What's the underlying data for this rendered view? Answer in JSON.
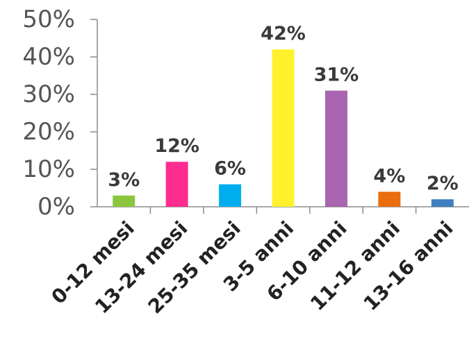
{
  "chart_data": {
    "type": "bar",
    "title": "",
    "xlabel": "",
    "ylabel": "",
    "ylim": [
      0,
      50
    ],
    "y_ticks": [
      "0%",
      "10%",
      "20%",
      "30%",
      "40%",
      "50%"
    ],
    "grid": false,
    "categories": [
      "0-12 mesi",
      "13-24 mesi",
      "25-35 mesi",
      "3-5 anni",
      "6-10 anni",
      "11-12 anni",
      "13-16 anni"
    ],
    "values": [
      3,
      12,
      6,
      42,
      31,
      4,
      2
    ],
    "value_labels": [
      "3%",
      "12%",
      "6%",
      "42%",
      "31%",
      "4%",
      "2%"
    ],
    "colors": [
      "#8cc63f",
      "#ff2d8f",
      "#00aeef",
      "#fff22d",
      "#a864ae",
      "#ea6d0e",
      "#3f7fc0"
    ]
  }
}
